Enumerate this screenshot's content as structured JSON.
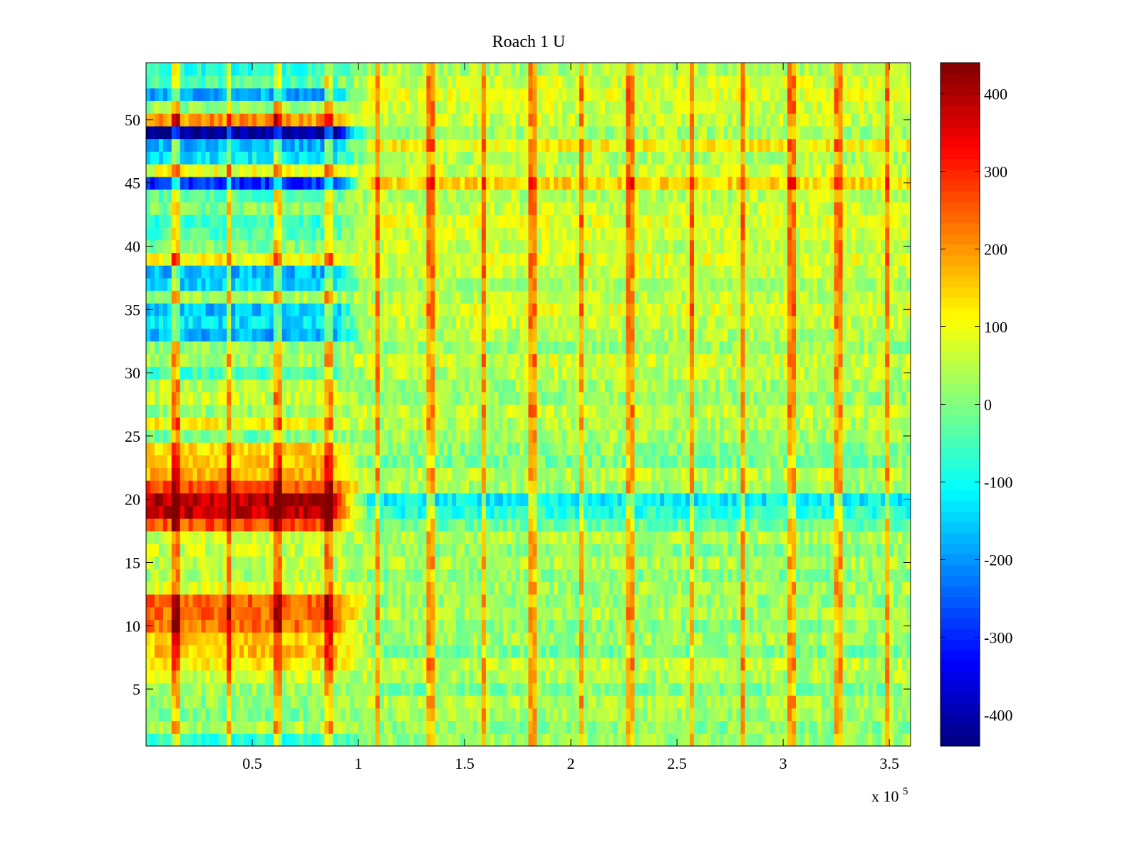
{
  "chart_data": {
    "type": "heatmap",
    "title": "Roach 1 U",
    "xlabel": "",
    "ylabel": "",
    "x_exponent_label": "x 10",
    "x_exponent_power": "5",
    "xlim": [
      0,
      3.6
    ],
    "ylim": [
      0.5,
      54.5
    ],
    "n_rows": 54,
    "n_cols": 180,
    "x_ticks": [
      0.5,
      1,
      1.5,
      2,
      2.5,
      3,
      3.5
    ],
    "x_tick_labels": [
      "0.5",
      "1",
      "1.5",
      "2",
      "2.5",
      "3",
      "3.5"
    ],
    "y_ticks": [
      5,
      10,
      15,
      20,
      25,
      30,
      35,
      40,
      45,
      50
    ],
    "y_tick_labels": [
      "5",
      "10",
      "15",
      "20",
      "25",
      "30",
      "35",
      "40",
      "45",
      "50"
    ],
    "colorbar": {
      "colormap": "jet",
      "clim": [
        -440,
        440
      ],
      "ticks": [
        400,
        300,
        200,
        100,
        0,
        -100,
        -200,
        -300,
        -400
      ],
      "tick_labels": [
        "400",
        "300",
        "200",
        "100",
        "0",
        "-100",
        "-200",
        "-300",
        "-400"
      ]
    },
    "early_segment_end_x": 0.88,
    "transition_end_x": 1.05,
    "row_means_early": {
      "1": -80,
      "2": 40,
      "3": 0,
      "4": 10,
      "5": 30,
      "6": 60,
      "7": 120,
      "8": 160,
      "9": 150,
      "10": 230,
      "11": 240,
      "12": 250,
      "13": 80,
      "14": 40,
      "15": 50,
      "16": 60,
      "17": 60,
      "18": 260,
      "19": 380,
      "20": 390,
      "21": 260,
      "22": 180,
      "23": 150,
      "24": 140,
      "25": -10,
      "26": 110,
      "27": 20,
      "28": 60,
      "29": 50,
      "30": -50,
      "31": 30,
      "32": 10,
      "33": -180,
      "34": -130,
      "35": -170,
      "36": 30,
      "37": -140,
      "38": -170,
      "39": 110,
      "40": 0,
      "41": -40,
      "42": -60,
      "43": 0,
      "44": -40,
      "45": -290,
      "46": 90,
      "47": -120,
      "48": -170,
      "49": -420,
      "50": 200,
      "51": 20,
      "52": -180,
      "53": -40,
      "54": -80
    },
    "row_means_late": {
      "1": 20,
      "2": 10,
      "3": 30,
      "4": 40,
      "5": 0,
      "6": 40,
      "7": 60,
      "8": -10,
      "9": 30,
      "10": 10,
      "11": 40,
      "12": 20,
      "13": 30,
      "14": 0,
      "15": 40,
      "16": 10,
      "17": 40,
      "18": -20,
      "19": -80,
      "20": -120,
      "21": 30,
      "22": 50,
      "23": -10,
      "24": 10,
      "25": 30,
      "26": 40,
      "27": 60,
      "28": 20,
      "29": 30,
      "30": 50,
      "31": 70,
      "32": 20,
      "33": 40,
      "34": 60,
      "35": 80,
      "36": 50,
      "37": 40,
      "38": 70,
      "39": 80,
      "40": 60,
      "41": 70,
      "42": 80,
      "43": 60,
      "44": 50,
      "45": 140,
      "46": 60,
      "47": 40,
      "48": 110,
      "49": 30,
      "50": 60,
      "51": 70,
      "52": 80,
      "53": 70,
      "54": 40
    },
    "spike_x": [
      0.14,
      0.39,
      0.62,
      0.86,
      1.09,
      1.34,
      1.59,
      1.82,
      2.05,
      2.28,
      2.57,
      2.81,
      3.04,
      3.26,
      3.49
    ],
    "spike_amplitude": 160
  }
}
